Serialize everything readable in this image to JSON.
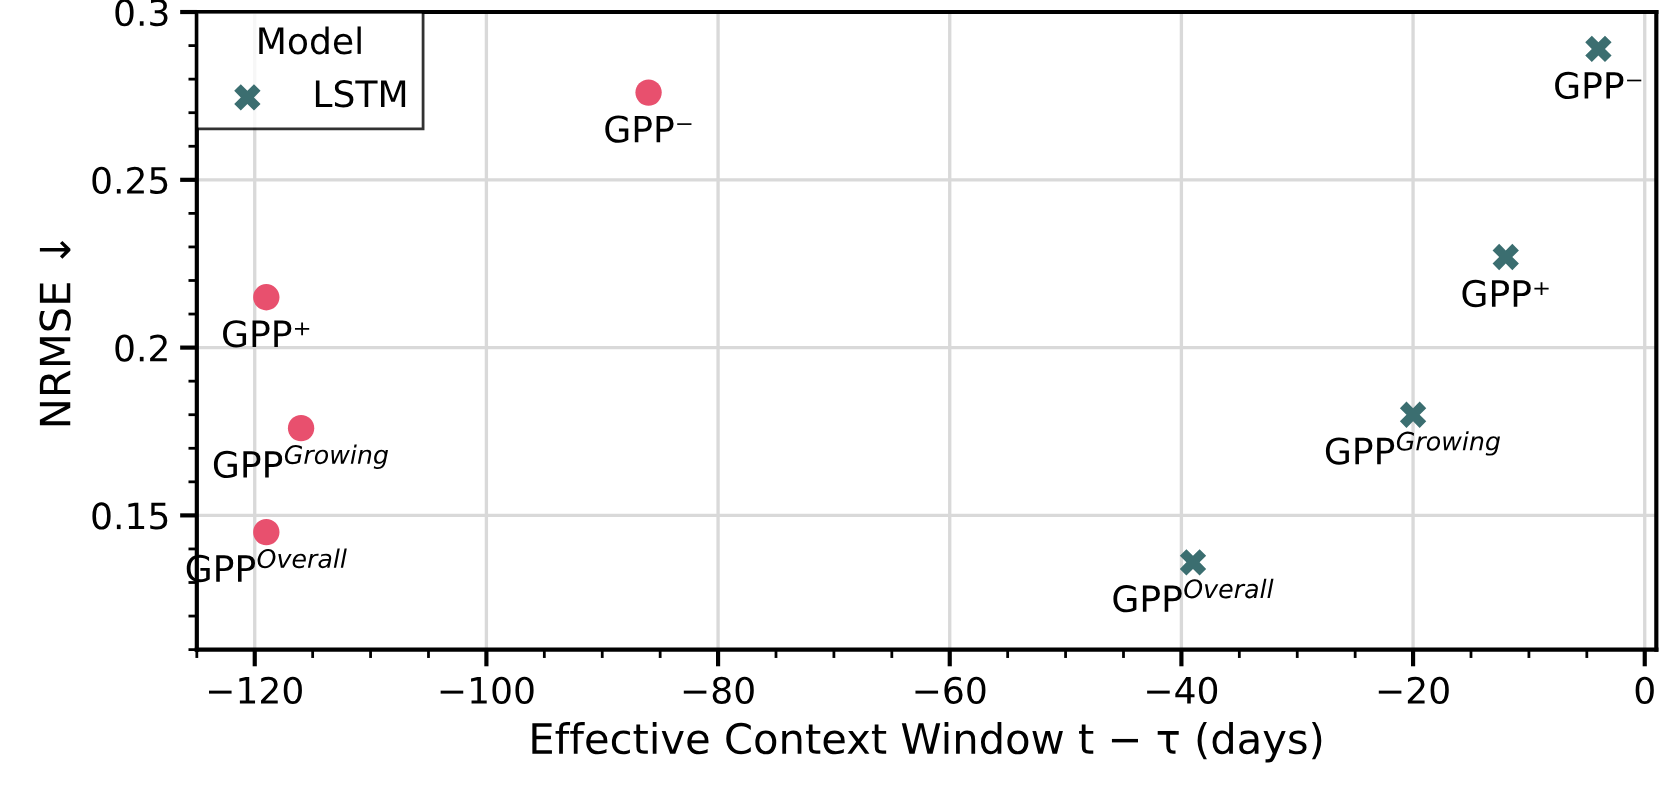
{
  "chart_data": {
    "type": "scatter",
    "xlabel": "Effective Context Window t − τ (days)",
    "ylabel": "NRMSE ↓",
    "legend_title": "Model",
    "legend": "top left",
    "grid": true,
    "xlim": [
      -125,
      1
    ],
    "xticks": [
      {
        "value": -120,
        "label": "−120"
      },
      {
        "value": -100,
        "label": "−100"
      },
      {
        "value": -80,
        "label": "−80"
      },
      {
        "value": -60,
        "label": "−60"
      },
      {
        "value": -40,
        "label": "−40"
      },
      {
        "value": -20,
        "label": "−20"
      },
      0
    ],
    "ylim": [
      0.11,
      0.3
    ],
    "yticks": [
      0.15,
      0.2,
      0.25,
      0.3
    ],
    "series": [
      {
        "color": "#e8506e",
        "marker": "circle",
        "x": [
          -119,
          -116,
          -119,
          -86
        ],
        "values": [
          0.215,
          0.176,
          0.145,
          0.276
        ]
      },
      {
        "name": "LSTM",
        "color": "#3b6e70",
        "marker": "cross",
        "x": [
          -4,
          -12,
          -20,
          -39
        ],
        "values": [
          0.289,
          0.227,
          0.18,
          0.136
        ]
      }
    ],
    "annotations": [
      {
        "text": "GPP⁺",
        "x": -119,
        "y": 0.215
      },
      {
        "text": "GPP$^{Growing}$",
        "x": -116,
        "y": 0.176
      },
      {
        "text": "GPP$^{Overall}$",
        "x": -119,
        "y": 0.145
      },
      {
        "text": "GPP⁻",
        "x": -86,
        "y": 0.276
      },
      {
        "text": "GPP⁻",
        "x": -4,
        "y": 0.289
      },
      {
        "text": "GPP⁺",
        "x": -12,
        "y": 0.227
      },
      {
        "text": "GPP$^{Growing}$",
        "x": -20,
        "y": 0.18
      },
      {
        "text": "GPP$^{Overall}$",
        "x": -39,
        "y": 0.136
      }
    ]
  }
}
